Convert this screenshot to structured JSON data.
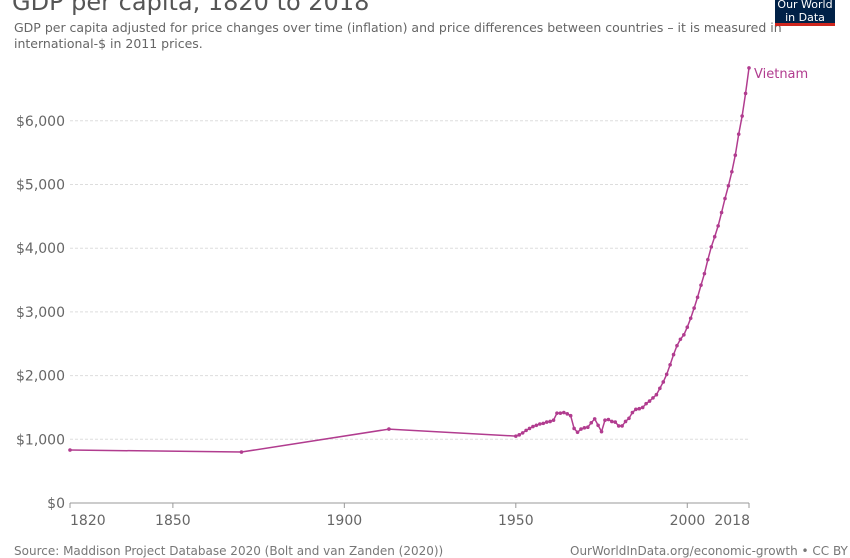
{
  "header": {
    "title": "GDP per capita, 1820 to 2018",
    "subtitle": "GDP per capita adjusted for price changes over time (inflation) and price differences between countries – it is measured in international-$ in 2011 prices.",
    "logo": "Our World in Data"
  },
  "footer": {
    "source": "Source: Maddison Project Database 2020 (Bolt and van Zanden (2020))",
    "url": "OurWorldInData.org/economic-growth • CC BY"
  },
  "chart_data": {
    "type": "line",
    "title": "GDP per capita, 1820 to 2018",
    "xlabel": "",
    "ylabel": "",
    "xlim": [
      1820,
      2018
    ],
    "ylim": [
      0,
      6830
    ],
    "x_ticks": [
      "1820",
      "1850",
      "1900",
      "1950",
      "2000",
      "2018"
    ],
    "x_tick_values": [
      1820,
      1850,
      1900,
      1950,
      2000,
      2018
    ],
    "y_ticks": [
      "$0",
      "$1,000",
      "$2,000",
      "$3,000",
      "$4,000",
      "$5,000",
      "$6,000"
    ],
    "y_tick_values": [
      0,
      1000,
      2000,
      3000,
      4000,
      5000,
      6000
    ],
    "grid": "horizontal dashed",
    "legend": "end-label",
    "series": [
      {
        "name": "Vietnam",
        "color": "#b13c8f",
        "x": [
          1820,
          1870,
          1913,
          1950,
          1951,
          1952,
          1953,
          1954,
          1955,
          1956,
          1957,
          1958,
          1959,
          1960,
          1961,
          1962,
          1963,
          1964,
          1965,
          1966,
          1967,
          1968,
          1969,
          1970,
          1971,
          1972,
          1973,
          1974,
          1975,
          1976,
          1977,
          1978,
          1979,
          1980,
          1981,
          1982,
          1983,
          1984,
          1985,
          1986,
          1987,
          1988,
          1989,
          1990,
          1991,
          1992,
          1993,
          1994,
          1995,
          1996,
          1997,
          1998,
          1999,
          2000,
          2001,
          2002,
          2003,
          2004,
          2005,
          2006,
          2007,
          2008,
          2009,
          2010,
          2011,
          2012,
          2013,
          2014,
          2015,
          2016,
          2017,
          2018
        ],
        "y": [
          832,
          800,
          1160,
          1050,
          1070,
          1100,
          1140,
          1170,
          1200,
          1220,
          1240,
          1250,
          1270,
          1280,
          1300,
          1410,
          1410,
          1420,
          1400,
          1370,
          1170,
          1110,
          1160,
          1180,
          1190,
          1260,
          1320,
          1220,
          1120,
          1300,
          1310,
          1280,
          1270,
          1210,
          1210,
          1280,
          1330,
          1420,
          1470,
          1480,
          1500,
          1560,
          1600,
          1650,
          1700,
          1800,
          1900,
          2020,
          2170,
          2330,
          2470,
          2570,
          2640,
          2760,
          2900,
          3060,
          3230,
          3420,
          3600,
          3820,
          4020,
          4180,
          4350,
          4560,
          4780,
          4980,
          5200,
          5460,
          5790,
          6075,
          6430,
          6830
        ]
      }
    ]
  }
}
